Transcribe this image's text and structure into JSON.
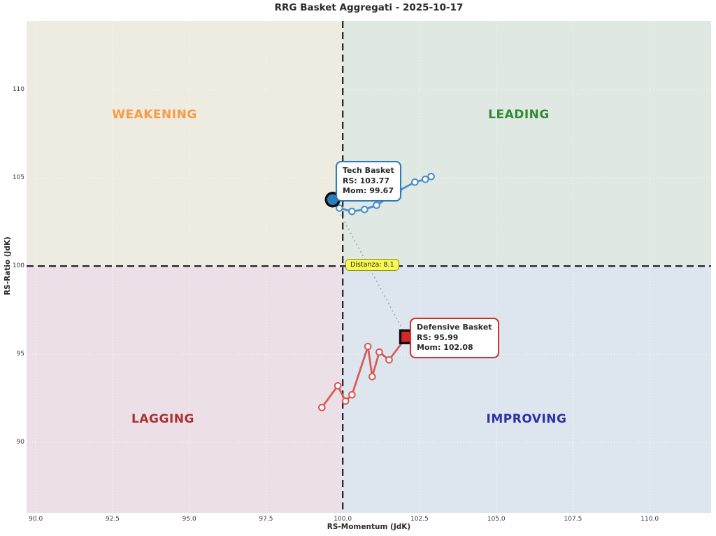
{
  "title": "RRG Basket Aggregati - 2025-10-17",
  "quadrants": {
    "weakening": {
      "label": "WEAKENING",
      "text_color": "#f49d42",
      "bg": "#eeebe0"
    },
    "leading": {
      "label": "LEADING",
      "text_color": "#318a36",
      "bg": "#dfe8e3"
    },
    "lagging": {
      "label": "LAGGING",
      "text_color": "#ab3131",
      "bg": "#ecdfe8"
    },
    "improving": {
      "label": "IMPROVING",
      "text_color": "#2c2fa6",
      "bg": "#dde6ef"
    }
  },
  "tooltips": {
    "tech": {
      "title": "Tech Basket",
      "rs_line": "RS: 103.77",
      "mom_line": "Mom: 99.67",
      "border": "#2b7cb9"
    },
    "defensive": {
      "title": "Defensive Basket",
      "rs_line": "RS: 95.99",
      "mom_line": "Mom: 102.08",
      "border": "#d32f2f"
    },
    "distance": {
      "label": "Distanza: 8.1",
      "bg": "#f9f954",
      "border": "#8f8f00"
    }
  },
  "chart_data": {
    "type": "scatter",
    "title": "RRG Basket Aggregati - 2025-10-17",
    "xlabel": "RS-Momentum (JdK)",
    "ylabel": "RS-Ratio (JdK)",
    "xlim": [
      89.7,
      112.0
    ],
    "ylim": [
      86.0,
      113.9
    ],
    "center": [
      100,
      100
    ],
    "grid": true,
    "x_tick_values": [
      90.0,
      92.5,
      95.0,
      97.5,
      100.0,
      102.5,
      105.0,
      107.5,
      110.0
    ],
    "x_tick_labels": [
      "90.0",
      "92.5",
      "95.0",
      "97.5",
      "100.0",
      "102.5",
      "105.0",
      "107.5",
      "110.0"
    ],
    "y_tick_values": [
      90,
      95,
      100,
      105,
      110
    ],
    "y_tick_labels": [
      "90",
      "95",
      "100",
      "105",
      "110"
    ],
    "distance_between_baskets": 8.1,
    "series": [
      {
        "name": "Tech Basket",
        "line_color": "#4a8fc7",
        "current_fill": "#2b7cb9",
        "current_marker": "circle",
        "current": {
          "rs": 103.77,
          "momentum": 99.67
        },
        "points": [
          [
            102.88,
            105.08
          ],
          [
            102.69,
            104.92
          ],
          [
            102.35,
            104.76
          ],
          [
            101.8,
            104.25
          ],
          [
            101.1,
            103.45
          ],
          [
            100.71,
            103.21
          ],
          [
            100.3,
            103.1
          ],
          [
            99.89,
            103.29
          ],
          [
            99.67,
            103.77
          ]
        ]
      },
      {
        "name": "Defensive Basket",
        "line_color": "#dc5a56",
        "current_fill": "#d62728",
        "current_marker": "square",
        "current": {
          "rs": 95.99,
          "momentum": 102.08
        },
        "points": [
          [
            99.32,
            91.98
          ],
          [
            99.84,
            93.21
          ],
          [
            100.09,
            92.34
          ],
          [
            100.3,
            92.7
          ],
          [
            100.82,
            95.44
          ],
          [
            100.96,
            93.73
          ],
          [
            101.19,
            95.12
          ],
          [
            101.51,
            94.68
          ],
          [
            102.08,
            95.99
          ]
        ]
      }
    ]
  }
}
